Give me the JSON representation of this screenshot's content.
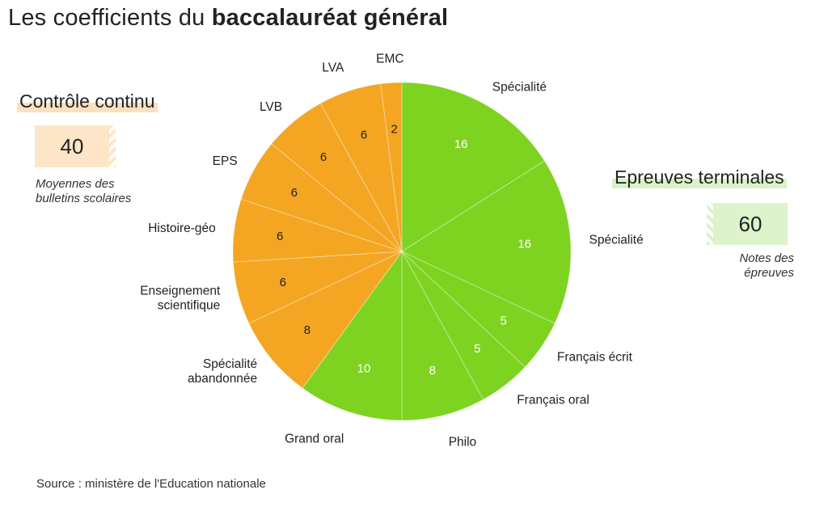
{
  "title": {
    "prefix": "Les coefficients du ",
    "emphasis": "baccalauréat général"
  },
  "groups": {
    "controle": {
      "label": "Contrôle continu",
      "total": "40",
      "note_line1": "Moyennes des",
      "note_line2": "bulletins scolaires",
      "color": "#f4a623"
    },
    "epreuves": {
      "label": "Epreuves terminales",
      "total": "60",
      "note_line1": "Notes des",
      "note_line2": "épreuves",
      "color": "#7ed321"
    }
  },
  "source": "Source : ministère de l'Education nationale",
  "chart_data": {
    "type": "pie",
    "start": "top, clockwise",
    "slices": [
      {
        "label": "Spécialité",
        "value": 16,
        "group": "epreuves"
      },
      {
        "label": "Spécialité",
        "value": 16,
        "group": "epreuves"
      },
      {
        "label": "Français écrit",
        "value": 5,
        "group": "epreuves"
      },
      {
        "label": "Français oral",
        "value": 5,
        "group": "epreuves"
      },
      {
        "label": "Philo",
        "value": 8,
        "group": "epreuves"
      },
      {
        "label": "Grand oral",
        "value": 10,
        "group": "epreuves"
      },
      {
        "label": "Spécialité abandonnée",
        "value": 8,
        "group": "controle"
      },
      {
        "label": "Enseignement scientifique",
        "value": 6,
        "group": "controle"
      },
      {
        "label": "Histoire-géo",
        "value": 6,
        "group": "controle"
      },
      {
        "label": "EPS",
        "value": 6,
        "group": "controle"
      },
      {
        "label": "LVB",
        "value": 6,
        "group": "controle"
      },
      {
        "label": "LVA",
        "value": 6,
        "group": "controle"
      },
      {
        "label": "EMC",
        "value": 2,
        "group": "controle"
      }
    ]
  }
}
